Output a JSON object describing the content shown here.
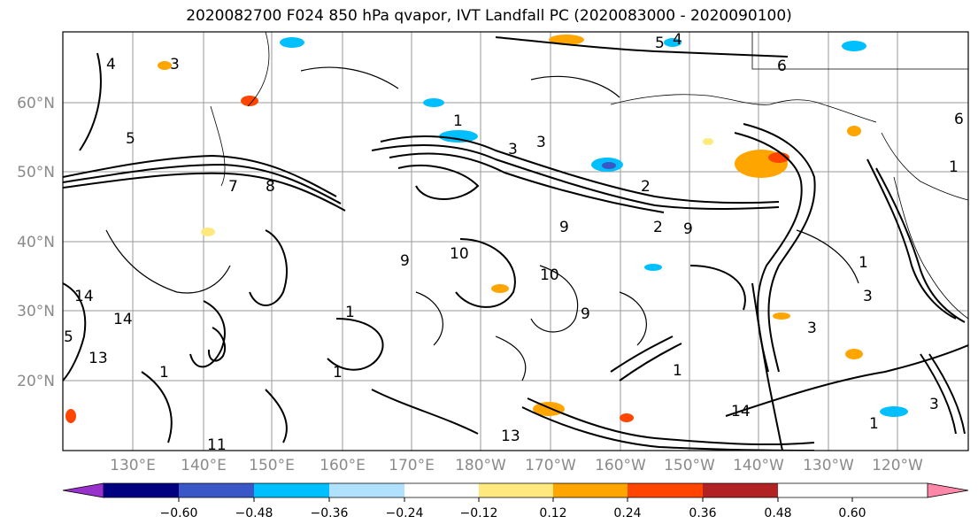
{
  "title": "2020082700 F024 850 hPa qvapor, IVT Landfall PC (2020083000 - 2020090100)",
  "map": {
    "lat_ticks": [
      "60°N",
      "50°N",
      "40°N",
      "30°N",
      "20°N"
    ],
    "lon_ticks": [
      "130°E",
      "140°E",
      "150°E",
      "160°E",
      "170°E",
      "180°W",
      "170°W",
      "160°W",
      "150°W",
      "140°W",
      "130°W",
      "120°W"
    ],
    "contour_labels": [
      "4",
      "3",
      "5",
      "5",
      "4",
      "3",
      "3",
      "2",
      "6",
      "1",
      "7",
      "8",
      "9",
      "10",
      "9",
      "2",
      "1",
      "3",
      "10",
      "9",
      "14",
      "5",
      "14",
      "1",
      "1",
      "13",
      "13",
      "1",
      "1",
      "14",
      "11",
      "3",
      "1",
      "3",
      "6",
      "9",
      "1"
    ]
  },
  "colorbar": {
    "colors": [
      "#9932CC",
      "#000080",
      "#3A57C8",
      "#00BFFF",
      "#B0E2FF",
      "#FFFFFF",
      "#FFE97F",
      "#FFA500",
      "#FF4500",
      "#B22222",
      "#FF88AA"
    ],
    "tick_labels": [
      "−0.60",
      "−0.48",
      "−0.36",
      "−0.24",
      "−0.12",
      "0.12",
      "0.24",
      "0.36",
      "0.48",
      "0.60"
    ]
  }
}
